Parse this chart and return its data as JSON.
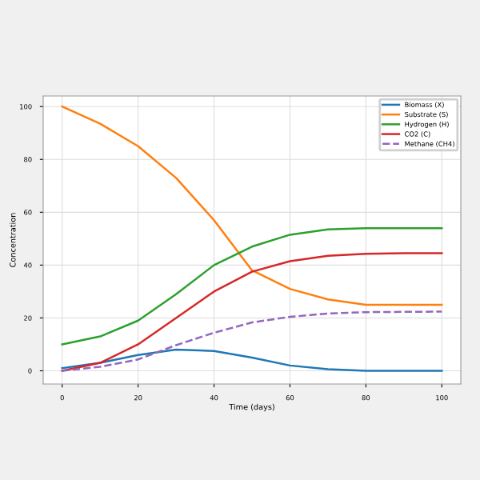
{
  "chart_data": {
    "type": "line",
    "xlabel": "Time (days)",
    "ylabel": "Concentration",
    "x": [
      0,
      10,
      20,
      30,
      40,
      50,
      60,
      70,
      80,
      90,
      100
    ],
    "series": [
      {
        "name": "Biomass (X)",
        "color": "#1f77b4",
        "values": [
          1,
          3,
          6,
          8,
          7.5,
          5,
          2,
          0.6,
          0,
          0,
          0
        ]
      },
      {
        "name": "Substrate (S)",
        "color": "#ff7f0e",
        "values": [
          100,
          93.5,
          85,
          73,
          57,
          38,
          31,
          27,
          25,
          25,
          25
        ]
      },
      {
        "name": "Hydrogen (H)",
        "color": "#2ca02c",
        "values": [
          10,
          13,
          19,
          29,
          40,
          47,
          51.5,
          53.5,
          54,
          54,
          54
        ]
      },
      {
        "name": "CO2 (C)",
        "color": "#d62728",
        "values": [
          0,
          3,
          10,
          20,
          30,
          37.5,
          41.5,
          43.5,
          44.3,
          44.5,
          44.5
        ]
      },
      {
        "name": "Methane (CH4)",
        "color": "#9467bd",
        "line_style": "dashed",
        "values": [
          0,
          1.5,
          4.3,
          9.7,
          14.4,
          18.3,
          20.4,
          21.7,
          22.2,
          22.3,
          22.4
        ]
      }
    ],
    "xlim": [
      -5,
      105
    ],
    "ylim": [
      -5,
      104
    ],
    "xticks": [
      0,
      20,
      40,
      60,
      80,
      100
    ],
    "yticks": [
      0,
      20,
      40,
      60,
      80,
      100
    ],
    "grid": true,
    "legend": "top right",
    "line_style": "solid",
    "marker": "none"
  }
}
